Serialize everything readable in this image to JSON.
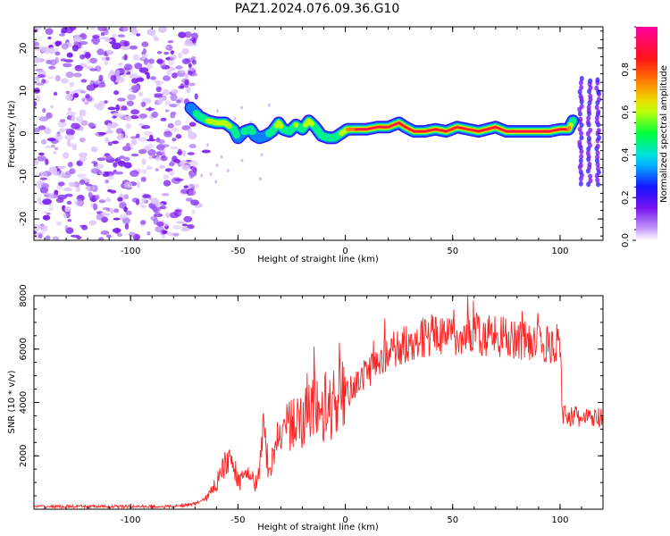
{
  "title": "PAZ1.2024.076.09.36.G10",
  "colors": {
    "background": "#ffffff",
    "snr_line": "#ff2020",
    "axis": "#000000",
    "scatter_purple": "#7a1cf0",
    "scatter_light": "#d9b8fa"
  },
  "chart_data": [
    {
      "type": "heatmap",
      "title": "",
      "xlabel": "Height of straight line (km)",
      "ylabel": "Frequency (Hz)",
      "xlim": [
        -145,
        120
      ],
      "ylim": [
        -25,
        25
      ],
      "xticks": [
        -100,
        -50,
        0,
        50,
        100
      ],
      "yticks": [
        -20,
        -10,
        0,
        10,
        20
      ],
      "colorbar": {
        "label": "Normalized spectral amplitude",
        "range": [
          0,
          1
        ],
        "ticks": [
          0.0,
          0.2,
          0.4,
          0.6,
          0.8
        ],
        "colormap": "rainbow (white-violet-blue-cyan-green-yellow-red-magenta)"
      },
      "ridge": {
        "description": "main spectral line (frequency vs height)",
        "x": [
          -72,
          -68,
          -64,
          -60,
          -56,
          -52,
          -50,
          -47,
          -44,
          -42,
          -40,
          -37,
          -34,
          -31,
          -29,
          -26,
          -23,
          -20,
          -17,
          -14,
          -11,
          -8,
          -5,
          -2,
          1,
          5,
          10,
          15,
          20,
          25,
          28,
          32,
          37,
          42,
          47,
          52,
          57,
          62,
          66,
          70,
          75,
          80,
          85,
          90,
          95,
          100,
          104,
          106
        ],
        "y": [
          6,
          4,
          3,
          2.5,
          2.5,
          1,
          -1,
          0.5,
          1,
          -0.5,
          -1,
          -0.5,
          0.5,
          2.5,
          1,
          0.5,
          2,
          1,
          3,
          1.5,
          -0.5,
          -1,
          -1,
          0,
          1,
          1,
          1,
          1.5,
          1.5,
          2.5,
          1.5,
          0.5,
          0.5,
          1,
          0.5,
          1.5,
          1,
          0.5,
          1,
          1.5,
          0.5,
          0.5,
          0.5,
          0.5,
          0.5,
          1,
          1,
          3
        ]
      },
      "ridge_amplitude": [
        0.3,
        0.45,
        0.55,
        0.6,
        0.6,
        0.5,
        0.35,
        0.4,
        0.45,
        0.3,
        0.3,
        0.35,
        0.45,
        0.6,
        0.5,
        0.45,
        0.55,
        0.5,
        0.6,
        0.5,
        0.4,
        0.45,
        0.5,
        0.55,
        0.7,
        0.85,
        0.95,
        0.95,
        0.95,
        0.95,
        0.95,
        0.95,
        0.95,
        0.95,
        0.95,
        0.95,
        0.95,
        0.95,
        0.95,
        0.95,
        0.95,
        0.95,
        0.95,
        0.95,
        0.95,
        0.95,
        0.8,
        0.4
      ]
    },
    {
      "type": "line",
      "title": "",
      "xlabel": "Height of straight line (km)",
      "ylabel": "SNR (10 * v/v)",
      "xlim": [
        -145,
        120
      ],
      "ylim": [
        0,
        8000
      ],
      "xticks": [
        -100,
        -50,
        0,
        50,
        100
      ],
      "yticks": [
        2000,
        4000,
        6000,
        8000
      ],
      "series": [
        {
          "x": [
            -145,
            -80,
            -70,
            -65,
            -62,
            -58,
            -55,
            -52,
            -50,
            -47,
            -45,
            -42,
            -40,
            -38,
            -37,
            -35,
            -32,
            -30,
            -25,
            -20,
            -15,
            -10,
            -5,
            0,
            5,
            10,
            15,
            20,
            25,
            30,
            35,
            40,
            45,
            50,
            55,
            60,
            65,
            70,
            75,
            80,
            85,
            90,
            95,
            100,
            101,
            105,
            110,
            115,
            120
          ],
          "values": [
            100,
            100,
            200,
            400,
            700,
            1300,
            1800,
            1500,
            1000,
            1200,
            1400,
            900,
            1500,
            3000,
            2200,
            1400,
            2400,
            2800,
            3100,
            3400,
            3600,
            3700,
            3900,
            4200,
            4700,
            5100,
            5500,
            5800,
            6100,
            6300,
            6400,
            6500,
            6500,
            6500,
            6500,
            6500,
            6500,
            6500,
            6400,
            6400,
            6300,
            6300,
            6200,
            6200,
            3600,
            3500,
            3400,
            3400,
            3400
          ]
        }
      ]
    }
  ]
}
